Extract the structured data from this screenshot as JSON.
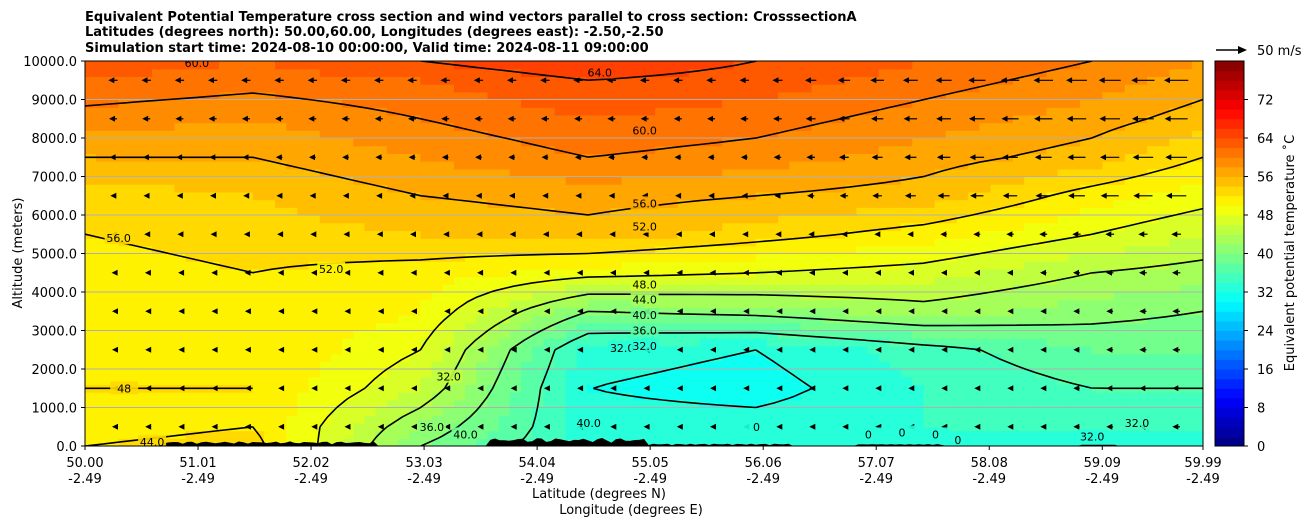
{
  "chart_data": {
    "type": "heatmap",
    "title": [
      "Equivalent Potential Temperature cross section and wind vectors parallel to cross section: CrosssectionA",
      "Latitudes (degrees north): 50.00,60.00, Longitudes (degrees east): -2.50,-2.50",
      "Simulation start time: 2024-08-10 00:00:00, Valid time: 2024-08-11 09:00:00"
    ],
    "ylabel": "Altitude (meters)",
    "xlabel_lat": "Latitude (degrees N)",
    "xlabel_lon": "Longitude (degrees E)",
    "y_ticks": [
      "0.0",
      "1000.0",
      "2000.0",
      "3000.0",
      "4000.0",
      "5000.0",
      "6000.0",
      "7000.0",
      "8000.0",
      "9000.0",
      "10000.0"
    ],
    "ylim": [
      0,
      10000
    ],
    "xlim": [
      50.0,
      59.99
    ],
    "x_ticks": [
      {
        "lat": "50.00",
        "lon": "-2.49"
      },
      {
        "lat": "51.01",
        "lon": "-2.49"
      },
      {
        "lat": "52.02",
        "lon": "-2.49"
      },
      {
        "lat": "53.03",
        "lon": "-2.49"
      },
      {
        "lat": "54.04",
        "lon": "-2.49"
      },
      {
        "lat": "55.05",
        "lon": "-2.49"
      },
      {
        "lat": "56.06",
        "lon": "-2.49"
      },
      {
        "lat": "57.07",
        "lon": "-2.49"
      },
      {
        "lat": "58.08",
        "lon": "-2.49"
      },
      {
        "lat": "59.09",
        "lon": "-2.49"
      },
      {
        "lat": "59.99",
        "lon": "-2.49"
      }
    ],
    "grid": "horizontal",
    "colorbar": {
      "label": "Equivalent potential temperature $^\\circ$C",
      "label_display": "Equivalent potential temperature ˚C",
      "ticks": [
        "0",
        "8",
        "16",
        "24",
        "32",
        "40",
        "48",
        "56",
        "64",
        "72"
      ],
      "range": [
        0,
        80
      ],
      "colormap": "jet"
    },
    "quiver_key": "50 m/s",
    "contour_levels": [
      "32.0",
      "36.0",
      "40.0",
      "44.0",
      "48.0",
      "52.0",
      "56.0",
      "60.0",
      "64.0"
    ],
    "field_profiles": {
      "altitudes_m": [
        0,
        500,
        1500,
        2500,
        3500,
        4500,
        5500,
        6500,
        7500,
        8500,
        9500,
        10000
      ],
      "latitude": [
        50.0,
        51.5,
        53.0,
        54.5,
        56.0,
        57.5,
        59.0,
        59.99
      ],
      "theta_e_C": [
        [
          52,
          51,
          52,
          51,
          50,
          51,
          52,
          53,
          56,
          59,
          62,
          63
        ],
        [
          53,
          52,
          52,
          52,
          52,
          52,
          53,
          54,
          56,
          58,
          61,
          62
        ],
        [
          40,
          42,
          46,
          48,
          50,
          51,
          54,
          56,
          58,
          60,
          62,
          64
        ],
        [
          33,
          33,
          32,
          33,
          40,
          49,
          55,
          57,
          60,
          62,
          64,
          66
        ],
        [
          33,
          33,
          31,
          32,
          41,
          48,
          53,
          56,
          59,
          61,
          63,
          64
        ],
        [
          33,
          34,
          34,
          35,
          43,
          47,
          51,
          55,
          57,
          59,
          61,
          62
        ],
        [
          33,
          34,
          36,
          38,
          41,
          44,
          48,
          51,
          55,
          57,
          59,
          60
        ],
        [
          33,
          34,
          36,
          38,
          40,
          43,
          46,
          49,
          52,
          55,
          57,
          58
        ]
      ]
    },
    "contour_label_values": {
      "west": [
        "60.0",
        "56.0",
        "52.0",
        "48",
        "44.0"
      ],
      "middle": [
        "64.0",
        "60.0",
        "56.0",
        "52.0",
        "48.0",
        "44.0",
        "40.0",
        "36.0",
        "32.0",
        "32.0",
        "32.0",
        "36.0",
        "40.0",
        "40.0"
      ],
      "east": [
        "0",
        "0",
        "0",
        "0",
        "0",
        "32.0",
        "32.0"
      ]
    }
  }
}
